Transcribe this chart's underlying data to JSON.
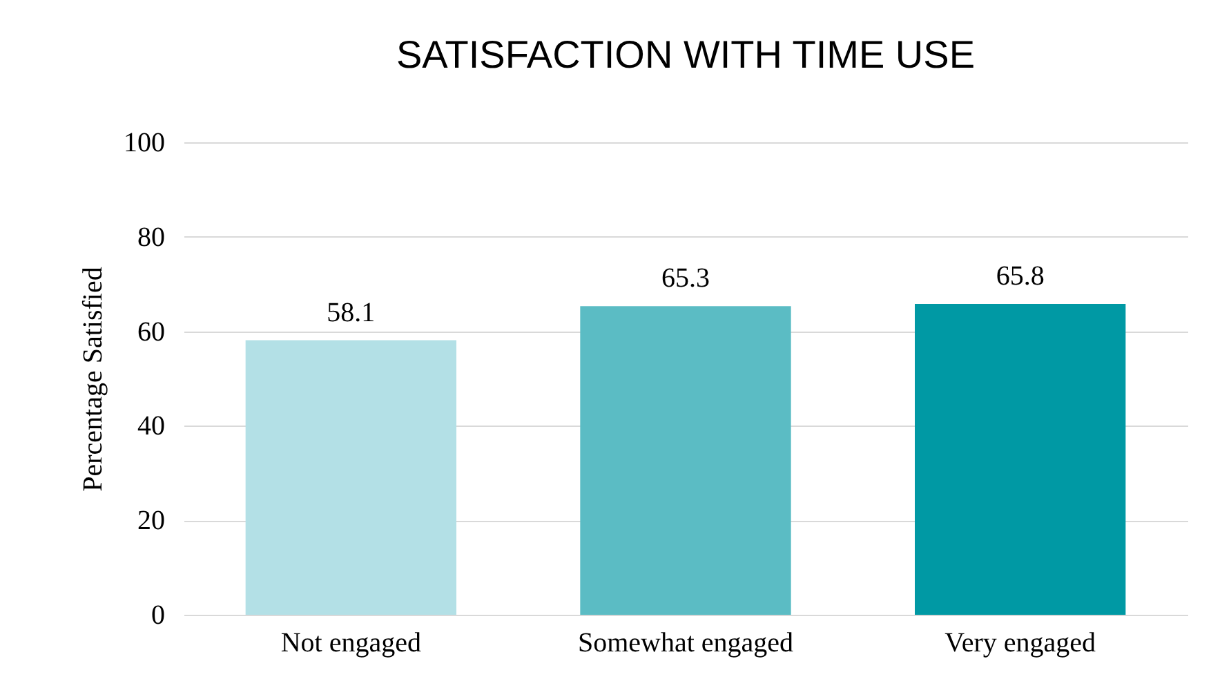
{
  "chart_data": {
    "type": "bar",
    "title": "SATISFACTION WITH TIME USE",
    "ylabel": "Percentage Satisfied",
    "categories": [
      "Not engaged",
      "Somewhat engaged",
      "Very engaged"
    ],
    "values": [
      58.1,
      65.3,
      65.8
    ],
    "colors": [
      "#b3e0e6",
      "#5bbcc4",
      "#0099a4"
    ],
    "ylim": [
      0,
      100
    ],
    "yticks": [
      0,
      20,
      40,
      60,
      80,
      100
    ],
    "grid": "y",
    "data_labels": true
  }
}
